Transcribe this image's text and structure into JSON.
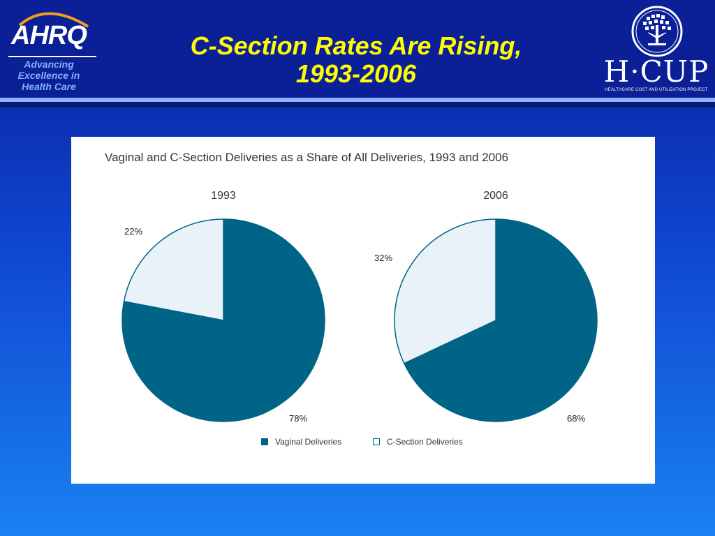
{
  "header": {
    "title_line1": "C-Section Rates Are Rising,",
    "title_line2": "1993-2006"
  },
  "ahrq_logo": {
    "wordmark": "AHRQ",
    "tagline_line1": "Advancing",
    "tagline_line2": "Excellence in",
    "tagline_line3": "Health Care"
  },
  "hcup_logo": {
    "wordmark": "H·CUP",
    "subtitle": "HEALTHCARE COST AND UTILIZATION PROJECT"
  },
  "colors": {
    "vaginal": "#006486",
    "csection": "#eaf2f9",
    "title": "#ffff00"
  },
  "chart_data": {
    "type": "pie",
    "title": "Vaginal and C-Section Deliveries as a Share of All Deliveries, 1993 and 2006",
    "legend": [
      "Vaginal Deliveries",
      "C-Section Deliveries"
    ],
    "legend_position": "bottom",
    "pies": [
      {
        "title": "1993",
        "slices": [
          {
            "name": "Vaginal Deliveries",
            "value": 78,
            "label": "78%"
          },
          {
            "name": "C-Section Deliveries",
            "value": 22,
            "label": "22%"
          }
        ]
      },
      {
        "title": "2006",
        "slices": [
          {
            "name": "Vaginal Deliveries",
            "value": 68,
            "label": "68%"
          },
          {
            "name": "C-Section Deliveries",
            "value": 32,
            "label": "32%"
          }
        ]
      }
    ]
  }
}
